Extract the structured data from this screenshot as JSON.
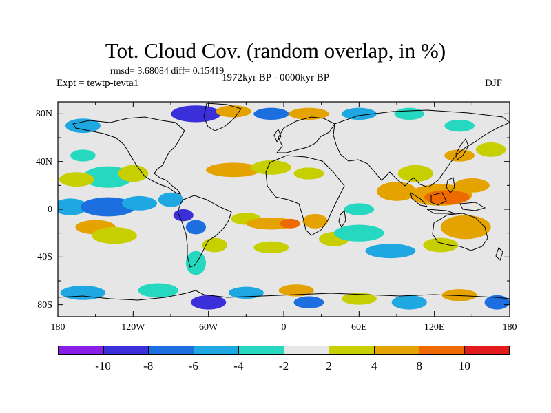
{
  "chart_data": {
    "type": "heatmap",
    "title": "Tot. Cloud Cov. (random overlap, in %)",
    "stats": "rmsd= 3.68084 diff= 0.15419",
    "period": "1972kyr BP - 0000kyr BP",
    "experiment": "Expt = tewtp-tevta1",
    "season": "DJF",
    "x_ticks": [
      "180",
      "120W",
      "60W",
      "0",
      "60E",
      "120E",
      "180"
    ],
    "y_ticks": [
      "80N",
      "40N",
      "0",
      "40S",
      "80S"
    ],
    "x_range": [
      -180,
      180
    ],
    "y_range": [
      -90,
      90
    ],
    "colorbar": {
      "labels": [
        "-10",
        "-8",
        "-6",
        "-4",
        "-2",
        "2",
        "4",
        "8",
        "10"
      ],
      "levels": [
        -10,
        -8,
        -6,
        -4,
        -2,
        2,
        4,
        8,
        10
      ],
      "colors": [
        "#8a1ee6",
        "#3a2fd8",
        "#1d6fe0",
        "#1ea7e0",
        "#26d8c0",
        "#e6e6e6",
        "#c8cf00",
        "#e4a300",
        "#ee6a00",
        "#e31a1c"
      ]
    },
    "anomaly_blobs": [
      {
        "lon": -170,
        "lat": 2,
        "rlon": 14,
        "rlat": 7,
        "value": -4.5
      },
      {
        "lon": -140,
        "lat": 2,
        "rlon": 22,
        "rlat": 8,
        "value": -6.5
      },
      {
        "lon": -115,
        "lat": 5,
        "rlon": 14,
        "rlat": 6,
        "value": -4.5
      },
      {
        "lon": -150,
        "lat": -15,
        "rlon": 16,
        "rlat": 6,
        "value": 4.5
      },
      {
        "lon": -135,
        "lat": -22,
        "rlon": 18,
        "rlat": 7,
        "value": 3
      },
      {
        "lon": -140,
        "lat": 27,
        "rlon": 20,
        "rlat": 9,
        "value": -3
      },
      {
        "lon": -120,
        "lat": 30,
        "rlon": 12,
        "rlat": 7,
        "value": 3
      },
      {
        "lon": -165,
        "lat": 25,
        "rlon": 14,
        "rlat": 6,
        "value": 3
      },
      {
        "lon": -160,
        "lat": 45,
        "rlon": 10,
        "rlat": 5,
        "value": -3
      },
      {
        "lon": -90,
        "lat": 8,
        "rlon": 10,
        "rlat": 6,
        "value": -4.5
      },
      {
        "lon": -80,
        "lat": -5,
        "rlon": 8,
        "rlat": 5,
        "value": -9
      },
      {
        "lon": -70,
        "lat": -15,
        "rlon": 8,
        "rlat": 6,
        "value": -6.5
      },
      {
        "lon": -70,
        "lat": -45,
        "rlon": 8,
        "rlat": 10,
        "value": -3
      },
      {
        "lon": -55,
        "lat": -30,
        "rlon": 10,
        "rlat": 6,
        "value": 3
      },
      {
        "lon": -40,
        "lat": 33,
        "rlon": 22,
        "rlat": 6,
        "value": 4.5
      },
      {
        "lon": -10,
        "lat": 35,
        "rlon": 16,
        "rlat": 6,
        "value": 3
      },
      {
        "lon": 20,
        "lat": 30,
        "rlon": 12,
        "rlat": 5,
        "value": 3
      },
      {
        "lon": -30,
        "lat": -8,
        "rlon": 12,
        "rlat": 5,
        "value": 3
      },
      {
        "lon": -10,
        "lat": -12,
        "rlon": 20,
        "rlat": 5,
        "value": 7
      },
      {
        "lon": 5,
        "lat": -12,
        "rlon": 8,
        "rlat": 4,
        "value": 9
      },
      {
        "lon": 25,
        "lat": -10,
        "rlon": 10,
        "rlat": 6,
        "value": 4.5
      },
      {
        "lon": -10,
        "lat": -32,
        "rlon": 14,
        "rlat": 5,
        "value": 3
      },
      {
        "lon": 40,
        "lat": -25,
        "rlon": 12,
        "rlat": 6,
        "value": 3
      },
      {
        "lon": 60,
        "lat": -20,
        "rlon": 20,
        "rlat": 7,
        "value": -3
      },
      {
        "lon": 85,
        "lat": -35,
        "rlon": 20,
        "rlat": 6,
        "value": -4.5
      },
      {
        "lon": 60,
        "lat": 0,
        "rlon": 12,
        "rlat": 5,
        "value": -3
      },
      {
        "lon": 90,
        "lat": 15,
        "rlon": 16,
        "rlat": 8,
        "value": 4.5
      },
      {
        "lon": 125,
        "lat": 12,
        "rlon": 25,
        "rlat": 9,
        "value": 7
      },
      {
        "lon": 130,
        "lat": 10,
        "rlon": 18,
        "rlat": 6,
        "value": 9
      },
      {
        "lon": 150,
        "lat": 20,
        "rlon": 14,
        "rlat": 6,
        "value": 4.5
      },
      {
        "lon": 145,
        "lat": -15,
        "rlon": 20,
        "rlat": 10,
        "value": 4.5
      },
      {
        "lon": 125,
        "lat": -30,
        "rlon": 14,
        "rlat": 6,
        "value": 3
      },
      {
        "lon": 105,
        "lat": 30,
        "rlon": 14,
        "rlat": 7,
        "value": 3
      },
      {
        "lon": 140,
        "lat": 45,
        "rlon": 12,
        "rlat": 5,
        "value": 4.5
      },
      {
        "lon": 165,
        "lat": 50,
        "rlon": 12,
        "rlat": 6,
        "value": 3
      },
      {
        "lon": -70,
        "lat": 80,
        "rlon": 20,
        "rlat": 7,
        "value": -9
      },
      {
        "lon": -40,
        "lat": 82,
        "rlon": 14,
        "rlat": 5,
        "value": 4.5
      },
      {
        "lon": -10,
        "lat": 80,
        "rlon": 14,
        "rlat": 5,
        "value": -6.5
      },
      {
        "lon": 20,
        "lat": 80,
        "rlon": 16,
        "rlat": 5,
        "value": 4.5
      },
      {
        "lon": 60,
        "lat": 80,
        "rlon": 14,
        "rlat": 5,
        "value": -4.5
      },
      {
        "lon": 100,
        "lat": 80,
        "rlon": 12,
        "rlat": 5,
        "value": -3
      },
      {
        "lon": -160,
        "lat": 70,
        "rlon": 14,
        "rlat": 6,
        "value": -4.5
      },
      {
        "lon": 140,
        "lat": 70,
        "rlon": 12,
        "rlat": 5,
        "value": -3
      },
      {
        "lon": -160,
        "lat": -70,
        "rlon": 18,
        "rlat": 6,
        "value": -4.5
      },
      {
        "lon": -100,
        "lat": -68,
        "rlon": 16,
        "rlat": 6,
        "value": -3
      },
      {
        "lon": -60,
        "lat": -78,
        "rlon": 14,
        "rlat": 6,
        "value": -9
      },
      {
        "lon": -30,
        "lat": -70,
        "rlon": 14,
        "rlat": 5,
        "value": -4.5
      },
      {
        "lon": 10,
        "lat": -68,
        "rlon": 14,
        "rlat": 5,
        "value": 4.5
      },
      {
        "lon": 20,
        "lat": -78,
        "rlon": 12,
        "rlat": 5,
        "value": -6.5
      },
      {
        "lon": 60,
        "lat": -75,
        "rlon": 14,
        "rlat": 5,
        "value": 3
      },
      {
        "lon": 100,
        "lat": -78,
        "rlon": 14,
        "rlat": 6,
        "value": -4.5
      },
      {
        "lon": 140,
        "lat": -72,
        "rlon": 14,
        "rlat": 5,
        "value": 4.5
      },
      {
        "lon": 170,
        "lat": -78,
        "rlon": 10,
        "rlat": 6,
        "value": -6.5
      }
    ]
  }
}
